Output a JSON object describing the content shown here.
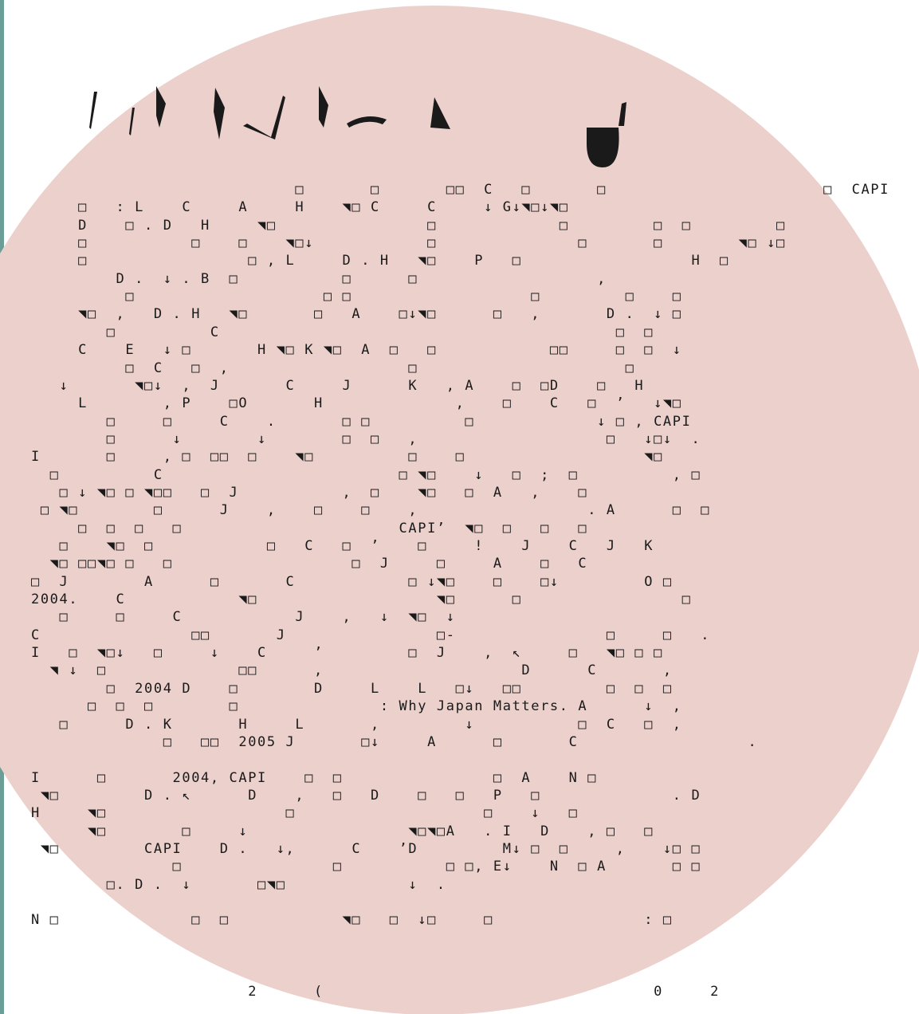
{
  "colors": {
    "accent_bar": "#6a9e96",
    "circle": "#ebd0cc",
    "text": "#1a1a1a",
    "heading_glyphs": "#1a1a1a"
  },
  "lines": [
    "                            □       □       □□  C   □       □                       □  CAPI",
    "     □   : L    C     A     H    ◥□ C     C     ↓ G↓◥□↓◥□",
    "     D    □ . D   H     ◥□                □             □         □  □         □",
    "     □           □    □    ◥□↓            □               □       □        ◥□ ↓□",
    "     □                 □ , L     D . H   ◥□    P   □                  H  □",
    "         D .  ↓ . B  □           □      □                   ,",
    "          □                    □ □                   □         □    □",
    "     ◥□  ,   D . H   ◥□       □   A    □↓◥□      □   ,       D .  ↓ □",
    "        □          C                                          □  □",
    "     C    E   ↓ □       H ◥□ K ◥□  A  □   □            □□     □  □  ↓",
    "          □  C   □  ,                   □                      □",
    "   ↓       ◥□↓  ,  J       C     J      K   , A    □  □D    □   H",
    "     L        , P    □O       H              ,    □    C   □  ’   ↓◥□",
    "        □     □     C    .       □ □          □             ↓ □ , CAPI",
    "        □      ↓        ↓        □  □   ,                    □   ↓□↓  .",
    "I       □     , □  □□  □    ◥□          □    □                   ◥□",
    "  □          C                         □ ◥□    ↓   □  ;  □          , □",
    "   □ ↓ ◥□ □ ◥□□   □  J           ,  □    ◥□   □  A   ,    □",
    " □ ◥□        □      J    ,    □    □    ,                  . A      □  □",
    "     □  □  □   □                       CAPI’  ◥□  □   □   □",
    "   □    ◥□  □            □   C   □  ’    □     !    J    C   J   K",
    "  ◥□ □□◥□ □   □                   □  J     □     A    □   C",
    "□  J        A      □       C            □ ↓◥□    □    □↓         O □",
    "2004.    C            ◥□                   ◥□      □                 □",
    "   □     □     C            J    ,   ↓  ◥□  ↓",
    "C                □□       J                □-                □     □   .",
    "I   □  ◥□↓   □     ↓    C     ’         □  J    ,  ↖     □   ◥□ □ □",
    "  ◥ ↓  □              □□      ,                     D      C       ,",
    "        □  2004 D    □        D     L    L   □↓   □□         □  □  □",
    "      □  □  □        □               : Why Japan Matters. A      ↓  ,",
    "   □      D . K       H     L       ,         ↓           □  C   □  ,",
    "              □   □□  2005 J       □↓     A      □       C                  .",
    "",
    "I      □       2004, CAPI    □  □                □  A    N □",
    " ◥□         D . ↖      D    ,   □   D    □   □   P   □              . D",
    "H     ◥□                   □                    □    ↓   □",
    "      ◥□        □     ↓                 ◥□◥□A   . I   D    , □   □",
    " ◥□         CAPI    D .   ↓,      C    ’D         M↓ □  □     ,    ↓□ □",
    "               □                □           □ □, E↓    N  □ A       □ □",
    "        □. D .  ↓       □◥□             ↓  .",
    "",
    "N □              □  □            ◥□   □  ↓□     □                : □",
    "",
    "",
    "",
    "                       2      (                                   0     2"
  ]
}
